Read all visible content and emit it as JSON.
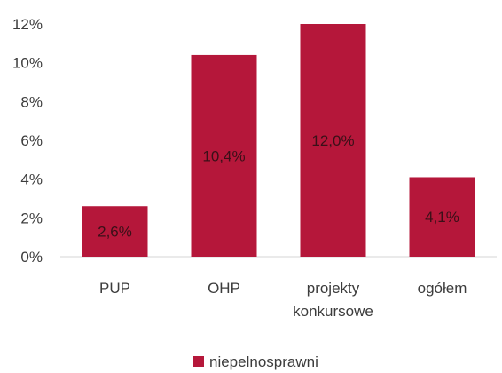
{
  "chart_data": {
    "type": "bar",
    "categories": [
      "PUP",
      "OHP",
      "projekty konkursowe",
      "ogółem"
    ],
    "category_lines": [
      [
        "PUP"
      ],
      [
        "OHP"
      ],
      [
        "projekty",
        "konkursowe"
      ],
      [
        "ogółem"
      ]
    ],
    "series": [
      {
        "name": "niepelnosprawni",
        "values": [
          2.6,
          10.4,
          12.0,
          4.1
        ],
        "color": "#b5173a"
      }
    ],
    "data_labels": [
      "2,6%",
      "10,4%",
      "12,0%",
      "4,1%"
    ],
    "y_ticks": [
      0,
      2,
      4,
      6,
      8,
      10,
      12
    ],
    "y_tick_labels": [
      "0%",
      "2%",
      "4%",
      "6%",
      "8%",
      "10%",
      "12%"
    ],
    "ylim": [
      0,
      12
    ],
    "grid": false,
    "legend_position": "bottom-center",
    "title": "",
    "xlabel": "",
    "ylabel": ""
  }
}
